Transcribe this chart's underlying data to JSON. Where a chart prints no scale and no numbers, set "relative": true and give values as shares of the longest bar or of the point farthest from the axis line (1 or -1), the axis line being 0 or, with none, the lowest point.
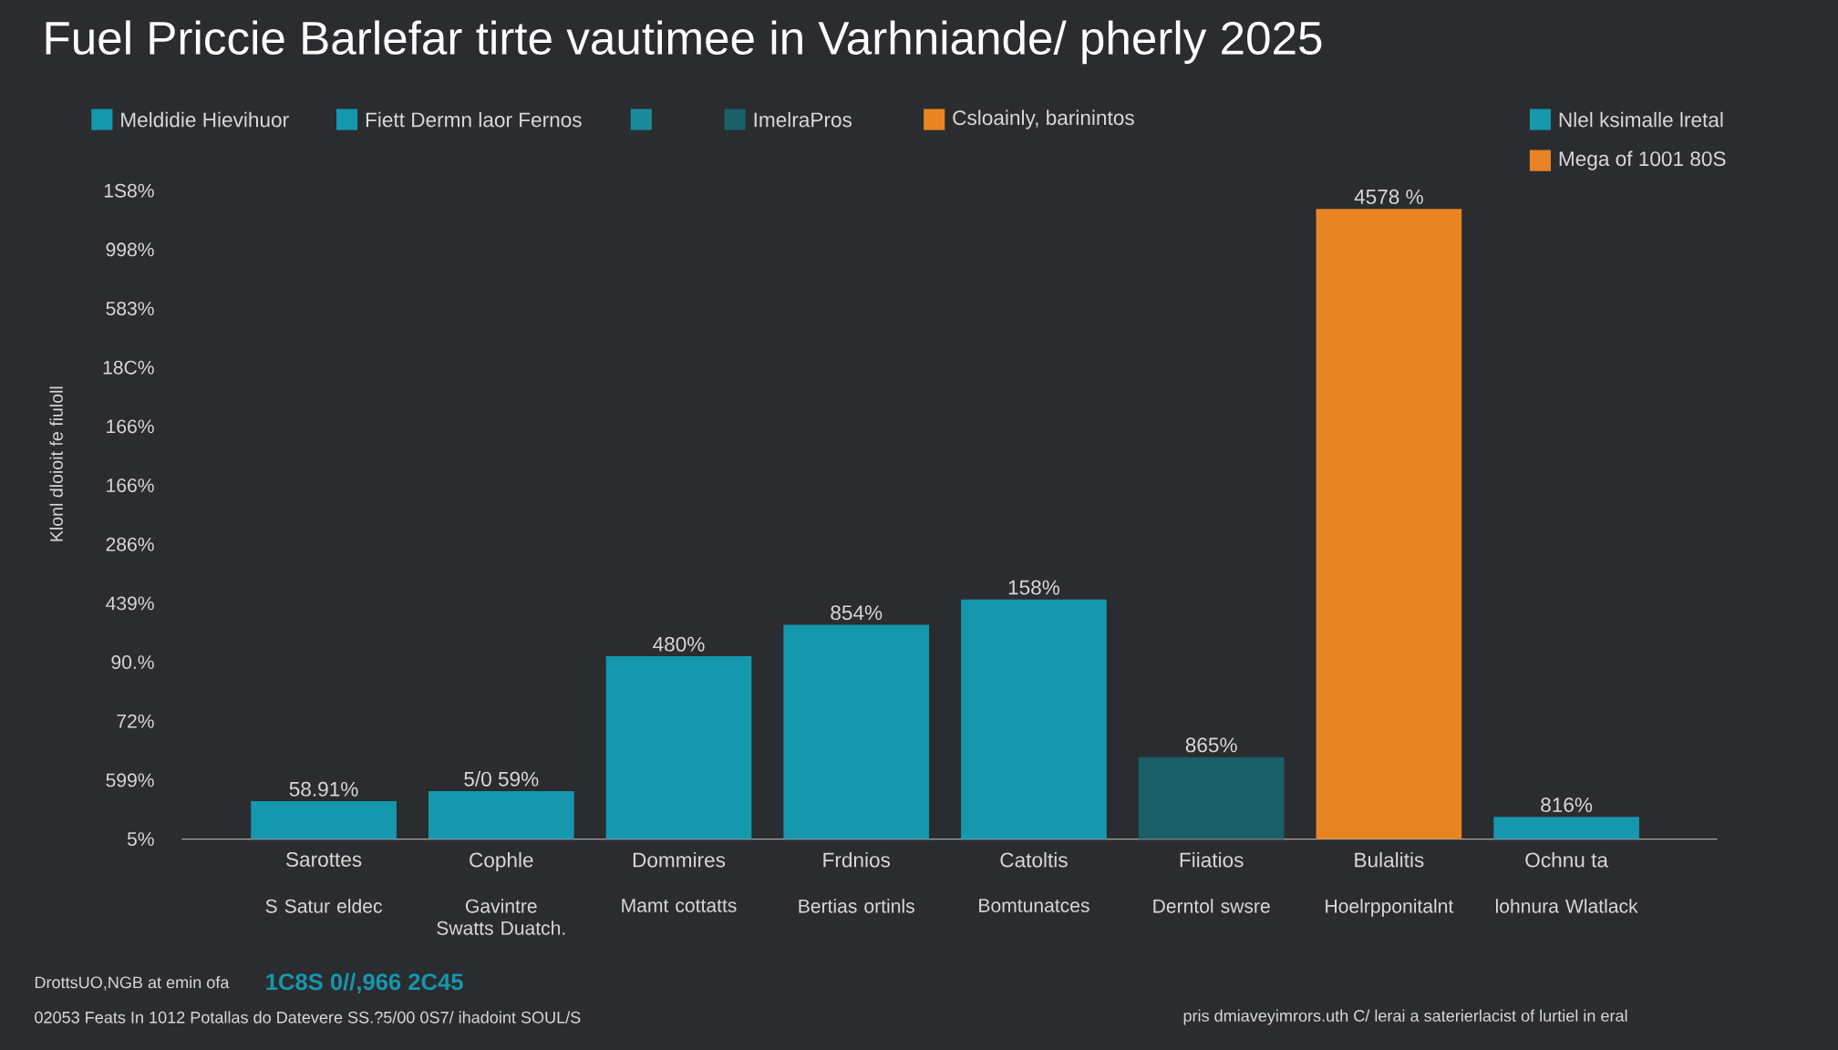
{
  "chart_data": {
    "type": "bar",
    "title": "Fuel Priccie Barlefar tirte vautimee in Varhniande/ pherly  2025",
    "relative": true,
    "categories": [
      "Sarottes",
      "Cophle",
      "Dommires",
      "Frdnios",
      "Catoltis",
      "Fiiatios",
      "Bulalitis",
      "Ochnu ta"
    ],
    "series": [
      {
        "name": "Meldidie Hievihuor",
        "color": "#1597ad",
        "values": [
          0.06,
          0.076,
          0.29,
          0.34,
          0.38,
          null,
          null,
          0.035
        ]
      },
      {
        "name": "Fiett Dermn laor Fernos",
        "color": "#1597ad",
        "values": [
          null,
          null,
          null,
          null,
          null,
          null,
          null,
          null
        ]
      },
      {
        "color": "#1a8a98",
        "values": [
          null,
          null,
          null,
          null,
          null,
          null,
          null,
          null
        ]
      },
      {
        "name": "ImelraPros",
        "color": "#1a5f68",
        "values": [
          null,
          null,
          null,
          null,
          null,
          0.13,
          null,
          null
        ]
      },
      {
        "name": "Csloainly, barinintos",
        "color": "#e88424",
        "values": [
          null,
          null,
          null,
          null,
          null,
          null,
          1,
          null
        ]
      },
      {
        "name": "Nlel ksimalle lretal",
        "color": "#1597ad",
        "values": [
          null,
          null,
          null,
          null,
          null,
          null,
          null,
          null
        ]
      },
      {
        "name": "Mega of 1001 80S",
        "color": "#e88424",
        "values": [
          null,
          null,
          null,
          null,
          null,
          null,
          null,
          null
        ]
      }
    ],
    "value_labels": [
      "58.91%",
      "5/0 59%",
      "480%",
      "854%",
      "158%",
      "865%",
      "4578 %",
      "816%"
    ],
    "legend": "top",
    "annotations": [
      "S Satur eldec",
      "Gavintre Swatts Duatch.",
      "Mamt cottatts",
      "Bertias ortinls",
      "Bomtunatces",
      "Derntol swsre",
      "Hoelrpponitalnt",
      "lohnura Wlatlack",
      "5%",
      "599%",
      "72%",
      "90.%",
      "439%",
      "286%",
      "166%",
      "166%",
      "18C%",
      "583%",
      "998%",
      "1S8%",
      "Klonl dloioit fe fiuloll",
      "DrottsUO,NGB at emin ofa",
      "1C8S 0//,966 2C45",
      "02053 Feats In 1012 Potallas do Datevere SS.?5/00 0S7/ ihadoint SOUL/S",
      "pris dmiaveyimrors.uth C/ lerai a saterierlacist of lurtiel in eral"
    ]
  }
}
